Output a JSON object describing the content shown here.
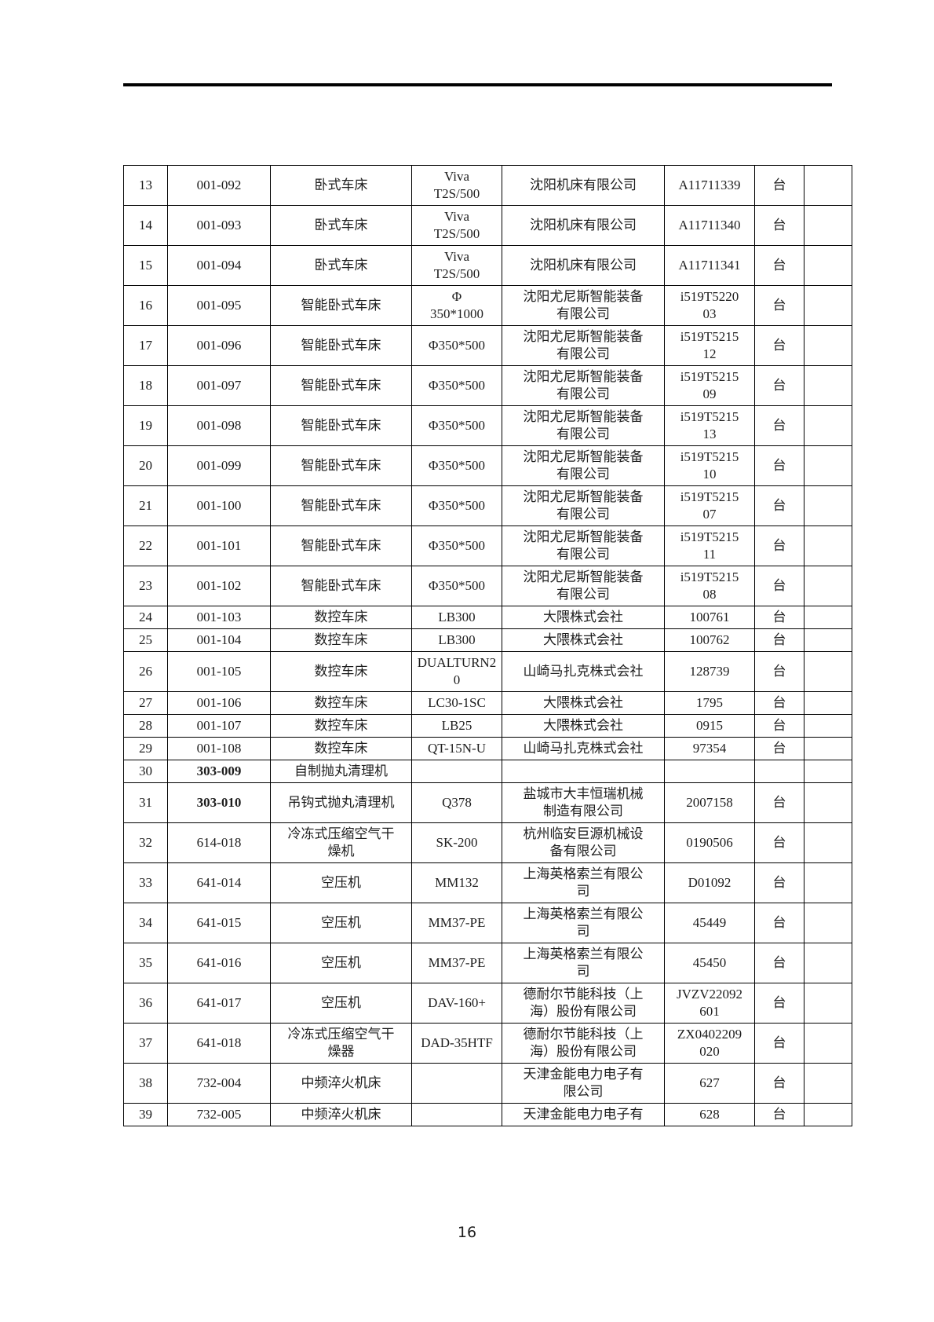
{
  "page": {
    "number": "16"
  },
  "table": {
    "columns": [
      "index",
      "code",
      "name",
      "model",
      "manufacturer",
      "serial",
      "unit",
      "extra"
    ],
    "unit_label": "台",
    "rows": [
      {
        "index": "13",
        "code": "001-092",
        "name": "卧式车床",
        "model": "Viva\nT2S/500",
        "manufacturer": "沈阳机床有限公司",
        "serial": "A11711339",
        "unit": "台",
        "extra": ""
      },
      {
        "index": "14",
        "code": "001-093",
        "name": "卧式车床",
        "model": "Viva\nT2S/500",
        "manufacturer": "沈阳机床有限公司",
        "serial": "A11711340",
        "unit": "台",
        "extra": ""
      },
      {
        "index": "15",
        "code": "001-094",
        "name": "卧式车床",
        "model": "Viva\nT2S/500",
        "manufacturer": "沈阳机床有限公司",
        "serial": "A11711341",
        "unit": "台",
        "extra": ""
      },
      {
        "index": "16",
        "code": "001-095",
        "name": "智能卧式车床",
        "model": "Φ\n350*1000",
        "manufacturer": "沈阳尤尼斯智能装备\n有限公司",
        "serial": "i519T5220\n03",
        "unit": "台",
        "extra": ""
      },
      {
        "index": "17",
        "code": "001-096",
        "name": "智能卧式车床",
        "model": "Φ350*500",
        "manufacturer": "沈阳尤尼斯智能装备\n有限公司",
        "serial": "i519T5215\n12",
        "unit": "台",
        "extra": ""
      },
      {
        "index": "18",
        "code": "001-097",
        "name": "智能卧式车床",
        "model": "Φ350*500",
        "manufacturer": "沈阳尤尼斯智能装备\n有限公司",
        "serial": "i519T5215\n09",
        "unit": "台",
        "extra": ""
      },
      {
        "index": "19",
        "code": "001-098",
        "name": "智能卧式车床",
        "model": "Φ350*500",
        "manufacturer": "沈阳尤尼斯智能装备\n有限公司",
        "serial": "i519T5215\n13",
        "unit": "台",
        "extra": ""
      },
      {
        "index": "20",
        "code": "001-099",
        "name": "智能卧式车床",
        "model": "Φ350*500",
        "manufacturer": "沈阳尤尼斯智能装备\n有限公司",
        "serial": "i519T5215\n10",
        "unit": "台",
        "extra": ""
      },
      {
        "index": "21",
        "code": "001-100",
        "name": "智能卧式车床",
        "model": "Φ350*500",
        "manufacturer": "沈阳尤尼斯智能装备\n有限公司",
        "serial": "i519T5215\n07",
        "unit": "台",
        "extra": ""
      },
      {
        "index": "22",
        "code": "001-101",
        "name": "智能卧式车床",
        "model": "Φ350*500",
        "manufacturer": "沈阳尤尼斯智能装备\n有限公司",
        "serial": "i519T5215\n11",
        "unit": "台",
        "extra": ""
      },
      {
        "index": "23",
        "code": "001-102",
        "name": "智能卧式车床",
        "model": "Φ350*500",
        "manufacturer": "沈阳尤尼斯智能装备\n有限公司",
        "serial": "i519T5215\n08",
        "unit": "台",
        "extra": ""
      },
      {
        "index": "24",
        "code": "001-103",
        "name": "数控车床",
        "model": "LB300",
        "manufacturer": "大隈株式会社",
        "serial": "100761",
        "unit": "台",
        "extra": ""
      },
      {
        "index": "25",
        "code": "001-104",
        "name": "数控车床",
        "model": "LB300",
        "manufacturer": "大隈株式会社",
        "serial": "100762",
        "unit": "台",
        "extra": ""
      },
      {
        "index": "26",
        "code": "001-105",
        "name": "数控车床",
        "model": "DUALTURN2\n0",
        "manufacturer": "山崎马扎克株式会社",
        "serial": "128739",
        "unit": "台",
        "extra": ""
      },
      {
        "index": "27",
        "code": "001-106",
        "name": "数控车床",
        "model": "LC30-1SC",
        "manufacturer": "大隈株式会社",
        "serial": "1795",
        "unit": "台",
        "extra": ""
      },
      {
        "index": "28",
        "code": "001-107",
        "name": "数控车床",
        "model": "LB25",
        "manufacturer": "大隈株式会社",
        "serial": "0915",
        "unit": "台",
        "extra": ""
      },
      {
        "index": "29",
        "code": "001-108",
        "name": "数控车床",
        "model": "QT-15N-U",
        "manufacturer": "山崎马扎克株式会社",
        "serial": "97354",
        "unit": "台",
        "extra": ""
      },
      {
        "index": "30",
        "code": "303-009",
        "code_bold": true,
        "name": "自制抛丸清理机",
        "model": "",
        "manufacturer": "",
        "serial": "",
        "unit": "",
        "extra": ""
      },
      {
        "index": "31",
        "code": "303-010",
        "code_bold": true,
        "name": "吊钩式抛丸清理机",
        "model": "Q378",
        "manufacturer": "盐城市大丰恒瑞机械\n制造有限公司",
        "serial": "2007158",
        "unit": "台",
        "extra": ""
      },
      {
        "index": "32",
        "code": "614-018",
        "name": "冷冻式压缩空气干\n燥机",
        "model": "SK-200",
        "manufacturer": "杭州临安巨源机械设\n备有限公司",
        "serial": "0190506",
        "unit": "台",
        "extra": ""
      },
      {
        "index": "33",
        "code": "641-014",
        "name": "空压机",
        "model": "MM132",
        "manufacturer": "上海英格索兰有限公\n司",
        "serial": "D01092",
        "unit": "台",
        "extra": ""
      },
      {
        "index": "34",
        "code": "641-015",
        "name": "空压机",
        "model": "MM37-PE",
        "manufacturer": "上海英格索兰有限公\n司",
        "serial": "45449",
        "unit": "台",
        "extra": ""
      },
      {
        "index": "35",
        "code": "641-016",
        "name": "空压机",
        "model": "MM37-PE",
        "manufacturer": "上海英格索兰有限公\n司",
        "serial": "45450",
        "unit": "台",
        "extra": ""
      },
      {
        "index": "36",
        "code": "641-017",
        "name": "空压机",
        "model": "DAV-160+",
        "manufacturer": "德耐尔节能科技（上\n海）股份有限公司",
        "serial": "JVZV22092\n601",
        "unit": "台",
        "extra": ""
      },
      {
        "index": "37",
        "code": "641-018",
        "name": "冷冻式压缩空气干\n燥器",
        "model": "DAD-35HTF",
        "manufacturer": "德耐尔节能科技（上\n海）股份有限公司",
        "serial": "ZX0402209\n020",
        "unit": "台",
        "extra": ""
      },
      {
        "index": "38",
        "code": "732-004",
        "name": "中频淬火机床",
        "model": "",
        "manufacturer": "天津金能电力电子有\n限公司",
        "serial": "627",
        "unit": "台",
        "extra": ""
      },
      {
        "index": "39",
        "code": "732-005",
        "name": "中频淬火机床",
        "model": "",
        "manufacturer": "天津金能电力电子有",
        "serial": "628",
        "unit": "台",
        "extra": ""
      }
    ]
  }
}
